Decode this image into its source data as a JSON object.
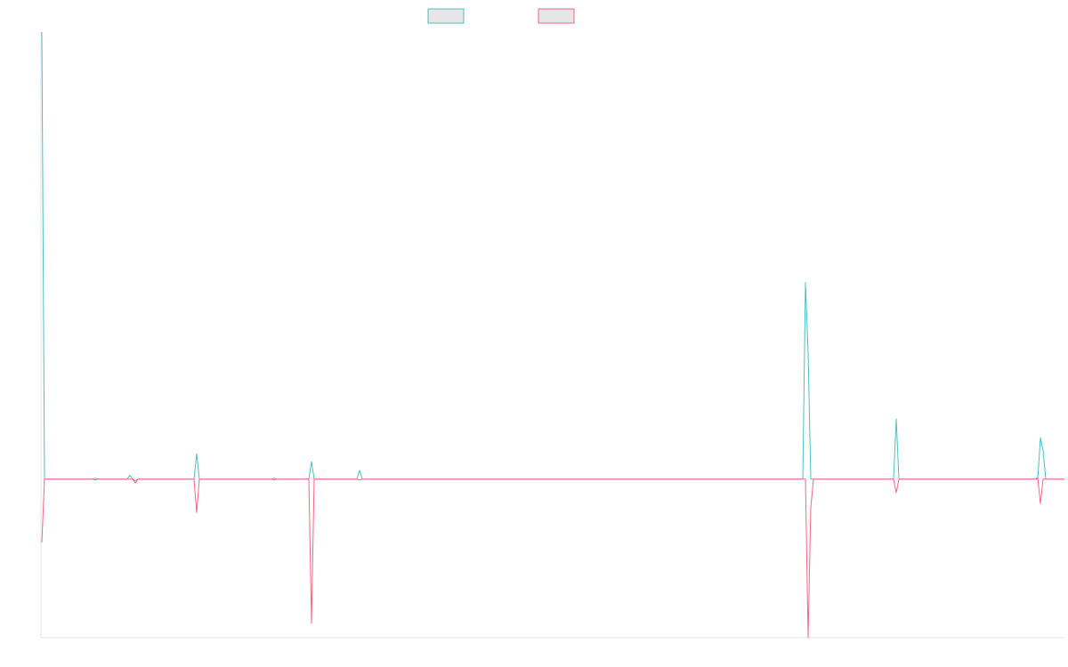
{
  "chart_data": {
    "type": "line",
    "title": "",
    "xlabel": "",
    "ylabel": "",
    "grid": false,
    "legend_position": "top",
    "x": [
      0,
      1,
      2,
      3,
      4,
      5,
      6,
      7,
      8,
      9,
      10,
      11,
      12,
      13,
      14,
      15,
      16,
      17,
      18,
      19,
      20,
      21,
      22,
      23,
      24,
      25,
      26,
      27,
      28,
      29,
      30,
      31,
      32,
      33,
      34,
      35,
      36,
      37,
      38,
      39,
      40,
      41,
      42,
      43,
      44,
      45,
      46,
      47,
      48,
      49,
      50,
      51,
      52,
      53,
      54,
      55,
      56,
      57,
      58,
      59,
      60,
      61,
      62,
      63,
      64,
      65,
      66,
      67,
      68,
      69,
      70,
      71,
      72,
      73,
      74,
      75,
      76,
      77,
      78,
      79,
      80,
      81,
      82,
      83,
      84,
      85,
      86,
      87,
      88,
      89,
      90,
      91,
      92,
      93,
      94,
      95,
      96,
      97,
      98,
      99,
      100,
      101,
      102,
      103,
      104,
      105,
      106,
      107,
      108,
      109,
      110,
      111,
      112,
      113,
      114,
      115,
      116,
      117,
      118,
      119,
      120,
      121,
      122,
      123,
      124,
      125,
      126,
      127,
      128,
      129,
      130,
      131,
      132,
      133,
      134,
      135,
      136,
      137,
      138,
      139,
      140,
      141,
      142,
      143,
      144,
      145,
      146,
      147,
      148,
      149,
      150,
      151,
      152,
      153,
      154,
      155,
      156,
      157,
      158,
      159,
      160,
      161,
      162,
      163,
      164,
      165,
      166,
      167,
      168,
      169,
      170,
      171,
      172,
      173,
      174,
      175,
      176,
      177,
      178,
      179,
      180,
      181,
      182,
      183,
      184,
      185,
      186,
      187,
      188,
      189,
      190,
      191,
      192,
      193,
      194,
      195,
      196,
      197,
      198,
      199,
      200,
      201,
      202,
      203,
      204,
      205,
      206,
      207,
      208,
      209,
      210,
      211,
      212,
      213,
      214,
      215,
      216,
      217,
      218,
      219,
      220,
      221,
      222,
      223,
      224,
      225,
      226,
      227,
      228,
      229,
      230,
      231,
      232,
      233,
      234,
      235,
      236,
      237,
      238,
      239,
      240,
      241,
      242,
      243,
      244,
      245,
      246,
      247,
      248,
      249,
      250,
      251,
      252,
      253,
      254,
      255,
      256,
      257,
      258,
      259,
      260,
      261,
      262,
      263,
      264,
      265,
      266,
      267,
      268,
      269,
      270,
      271,
      272,
      273,
      274,
      275,
      276,
      277,
      278,
      279,
      280,
      281,
      282,
      283,
      284,
      285,
      286,
      287,
      288,
      289,
      290,
      291,
      292,
      293,
      294,
      295,
      296,
      297,
      298,
      299,
      300,
      301,
      302,
      303,
      304,
      305,
      306,
      307,
      308,
      309,
      310,
      311,
      312,
      313,
      314,
      315,
      316,
      317,
      318,
      319,
      320,
      321,
      322,
      323,
      324,
      325,
      326,
      327,
      328,
      329,
      330,
      331,
      332,
      333,
      334,
      335,
      336,
      337,
      338,
      339,
      340,
      341,
      342,
      343,
      344,
      345,
      346,
      347,
      348,
      349,
      350,
      351,
      352,
      353,
      354,
      355,
      356,
      357,
      358,
      359,
      360,
      361,
      362,
      363,
      364,
      365,
      366,
      367,
      368,
      369,
      370,
      371,
      372,
      373,
      374,
      375,
      376,
      377,
      378,
      379,
      380,
      381,
      382,
      383
    ],
    "ylim": [
      -100,
      282
    ],
    "series": [
      {
        "color": "#4bc0c0",
        "values": {
          "default": 0,
          "points": [
            [
              0,
              282
            ],
            [
              1,
              0
            ],
            [
              20,
              0.5
            ],
            [
              33,
              2.5
            ],
            [
              35,
              -1
            ],
            [
              58,
              16
            ],
            [
              59,
              0
            ],
            [
              87,
              -0.5
            ],
            [
              101,
              11
            ],
            [
              102,
              0
            ],
            [
              119,
              5.5
            ],
            [
              120,
              0
            ],
            [
              286,
              124
            ],
            [
              287,
              80
            ],
            [
              288,
              0
            ],
            [
              320,
              38
            ],
            [
              321,
              0
            ],
            [
              374,
              26
            ],
            [
              375,
              18
            ],
            [
              376,
              0
            ]
          ]
        }
      },
      {
        "color": "#ff6384",
        "values": {
          "default": 0,
          "points": [
            [
              0,
              -40
            ],
            [
              1,
              0
            ],
            [
              20,
              -0.5
            ],
            [
              35,
              -2.5
            ],
            [
              58,
              -21
            ],
            [
              59,
              0
            ],
            [
              87,
              0.5
            ],
            [
              101,
              -91
            ],
            [
              102,
              0
            ],
            [
              119,
              -0.5
            ],
            [
              287,
              -100
            ],
            [
              288,
              -18
            ],
            [
              289,
              0
            ],
            [
              320,
              -8.5
            ],
            [
              321,
              0
            ],
            [
              373,
              0.8
            ],
            [
              374,
              -15.5
            ],
            [
              375,
              0
            ]
          ]
        }
      }
    ]
  }
}
